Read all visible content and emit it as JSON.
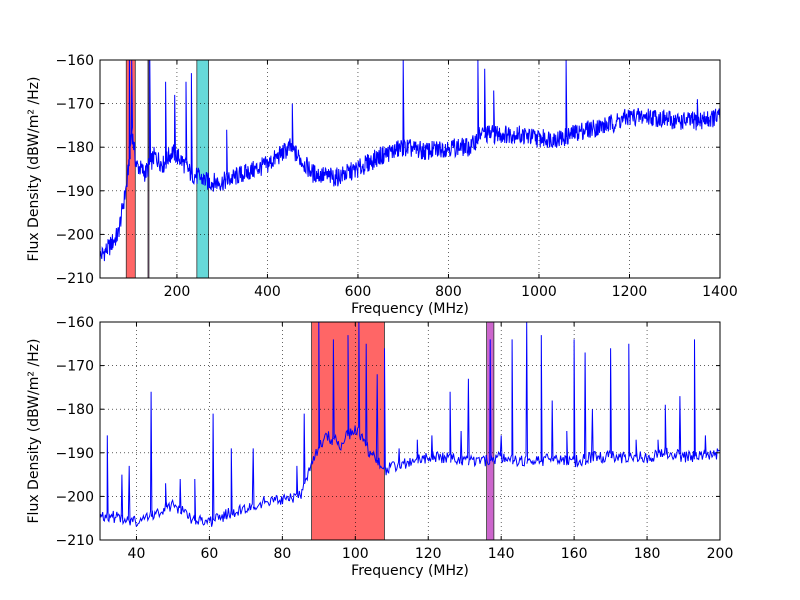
{
  "chart_data": [
    {
      "type": "line",
      "xlabel": "Frequency (MHz)",
      "ylabel": "Flux Density (dBW/m² /Hz)",
      "xlim": [
        30,
        1400
      ],
      "ylim": [
        -210,
        -160
      ],
      "xticks": [
        200,
        400,
        600,
        800,
        1000,
        1200,
        1400
      ],
      "yticks": [
        -210,
        -200,
        -190,
        -180,
        -170,
        -160
      ],
      "grid": true,
      "line_color": "#0000ff",
      "bands": [
        {
          "x0": 88,
          "x1": 108,
          "color": "#ff6666"
        },
        {
          "x0": 136,
          "x1": 138,
          "color": "#cc66cc"
        },
        {
          "x0": 244,
          "x1": 270,
          "color": "#66d9d9"
        }
      ],
      "series": [
        {
          "x": [
            30,
            50,
            70,
            90,
            100,
            110,
            130,
            150,
            170,
            190,
            210,
            230,
            250,
            270,
            300,
            350,
            400,
            450,
            500,
            550,
            600,
            650,
            700,
            750,
            800,
            850,
            870,
            900,
            950,
            1000,
            1050,
            1100,
            1150,
            1200,
            1250,
            1300,
            1350,
            1400
          ],
          "y": [
            -205,
            -203,
            -200,
            -188,
            -176,
            -184,
            -186,
            -182,
            -184,
            -181,
            -183,
            -186,
            -187,
            -188,
            -188,
            -186,
            -184,
            -180,
            -186,
            -187,
            -185,
            -182,
            -180,
            -181,
            -180,
            -180,
            -177,
            -177,
            -177,
            -178,
            -178,
            -176,
            -175,
            -173,
            -173,
            -174,
            -174,
            -173
          ]
        }
      ],
      "spikes": [
        {
          "x": 95,
          "y": -160
        },
        {
          "x": 100,
          "y": -160
        },
        {
          "x": 140,
          "y": -160
        },
        {
          "x": 175,
          "y": -165
        },
        {
          "x": 195,
          "y": -168
        },
        {
          "x": 220,
          "y": -165
        },
        {
          "x": 232,
          "y": -163
        },
        {
          "x": 310,
          "y": -176
        },
        {
          "x": 455,
          "y": -170
        },
        {
          "x": 700,
          "y": -160
        },
        {
          "x": 865,
          "y": -160
        },
        {
          "x": 880,
          "y": -162
        },
        {
          "x": 900,
          "y": -167
        },
        {
          "x": 1060,
          "y": -160
        },
        {
          "x": 1350,
          "y": -169
        }
      ]
    },
    {
      "type": "line",
      "xlabel": "Frequency (MHz)",
      "ylabel": "Flux Density (dBW/m² /Hz)",
      "xlim": [
        30,
        200
      ],
      "ylim": [
        -210,
        -160
      ],
      "xticks": [
        40,
        60,
        80,
        100,
        120,
        140,
        160,
        180,
        200
      ],
      "yticks": [
        -210,
        -200,
        -190,
        -180,
        -170,
        -160
      ],
      "grid": true,
      "line_color": "#0000ff",
      "bands": [
        {
          "x0": 88,
          "x1": 108,
          "color": "#ff6666"
        },
        {
          "x0": 136,
          "x1": 138,
          "color": "#cc66cc"
        }
      ],
      "series": [
        {
          "x": [
            30,
            35,
            40,
            45,
            50,
            55,
            60,
            65,
            70,
            75,
            80,
            85,
            88,
            92,
            96,
            100,
            104,
            108,
            112,
            116,
            120,
            125,
            130,
            135,
            140,
            145,
            150,
            155,
            160,
            165,
            170,
            175,
            180,
            185,
            190,
            195,
            200
          ],
          "y": [
            -204,
            -205,
            -206,
            -204,
            -202,
            -205,
            -206,
            -204,
            -203,
            -201,
            -201,
            -200,
            -192,
            -186,
            -188,
            -184,
            -190,
            -194,
            -193,
            -192,
            -191,
            -191,
            -192,
            -192,
            -191,
            -192,
            -192,
            -191,
            -192,
            -191,
            -191,
            -191,
            -191,
            -190,
            -191,
            -191,
            -190
          ]
        }
      ],
      "spikes": [
        {
          "x": 32,
          "y": -186
        },
        {
          "x": 36,
          "y": -195
        },
        {
          "x": 38,
          "y": -193
        },
        {
          "x": 44,
          "y": -176
        },
        {
          "x": 48,
          "y": -197
        },
        {
          "x": 52,
          "y": -196
        },
        {
          "x": 56,
          "y": -196
        },
        {
          "x": 61,
          "y": -181
        },
        {
          "x": 66,
          "y": -189
        },
        {
          "x": 72,
          "y": -189
        },
        {
          "x": 84,
          "y": -193
        },
        {
          "x": 86,
          "y": -181
        },
        {
          "x": 90,
          "y": -160
        },
        {
          "x": 94,
          "y": -164
        },
        {
          "x": 98,
          "y": -163
        },
        {
          "x": 101,
          "y": -160
        },
        {
          "x": 103,
          "y": -165
        },
        {
          "x": 106,
          "y": -172
        },
        {
          "x": 108,
          "y": -166
        },
        {
          "x": 112,
          "y": -189
        },
        {
          "x": 117,
          "y": -187
        },
        {
          "x": 121,
          "y": -186
        },
        {
          "x": 126,
          "y": -176
        },
        {
          "x": 129,
          "y": -185
        },
        {
          "x": 131,
          "y": -173
        },
        {
          "x": 137,
          "y": -164
        },
        {
          "x": 140,
          "y": -186
        },
        {
          "x": 143,
          "y": -164
        },
        {
          "x": 147,
          "y": -160
        },
        {
          "x": 151,
          "y": -163
        },
        {
          "x": 154,
          "y": -178
        },
        {
          "x": 158,
          "y": -185
        },
        {
          "x": 160,
          "y": -164
        },
        {
          "x": 163,
          "y": -167
        },
        {
          "x": 165,
          "y": -180
        },
        {
          "x": 170,
          "y": -166
        },
        {
          "x": 175,
          "y": -165
        },
        {
          "x": 177,
          "y": -187
        },
        {
          "x": 183,
          "y": -187
        },
        {
          "x": 185,
          "y": -179
        },
        {
          "x": 189,
          "y": -177
        },
        {
          "x": 193,
          "y": -164
        },
        {
          "x": 196,
          "y": -186
        },
        {
          "x": 200,
          "y": -169
        }
      ]
    }
  ]
}
